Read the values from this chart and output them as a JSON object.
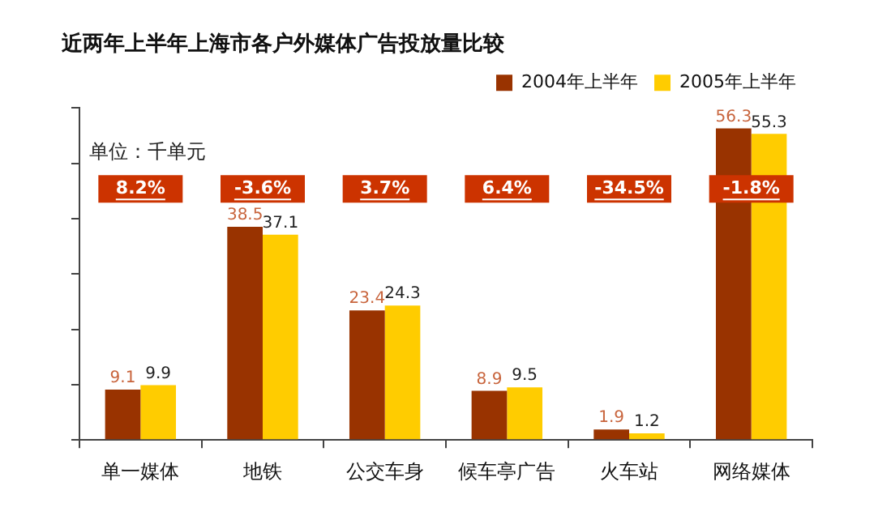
{
  "chart_data": {
    "type": "bar",
    "title": "近两年上半年上海市各户外媒体广告投放量比较",
    "categories": [
      "单一媒体",
      "地铁",
      "公交车身",
      "候车亭广告",
      "火车站",
      "网络媒体"
    ],
    "series": [
      {
        "name": "2004年上半年",
        "color": "#993300",
        "values": [
          9.1,
          38.5,
          23.4,
          8.9,
          1.9,
          56.3
        ]
      },
      {
        "name": "2005年上半年",
        "color": "#ffcc00",
        "values": [
          9.9,
          37.1,
          24.3,
          9.5,
          1.2,
          55.3
        ]
      }
    ],
    "ylim": [
      0,
      60
    ],
    "yticks": [
      {
        "value": 0,
        "label": null
      },
      {
        "value": 10,
        "label": null
      },
      {
        "value": 20,
        "label": null
      },
      {
        "value": 30,
        "label": null
      },
      {
        "value": 40,
        "label": null
      },
      {
        "value": 50,
        "label": null
      },
      {
        "value": 60,
        "label": null
      }
    ],
    "tick_labels": "x",
    "grid": false,
    "legend": "top right",
    "data_labels": true,
    "annotations": [
      "单位：千单元",
      "8.2%",
      "-3.6%",
      "3.7%",
      "6.4%",
      "-34.5%",
      "-1.8%"
    ]
  }
}
